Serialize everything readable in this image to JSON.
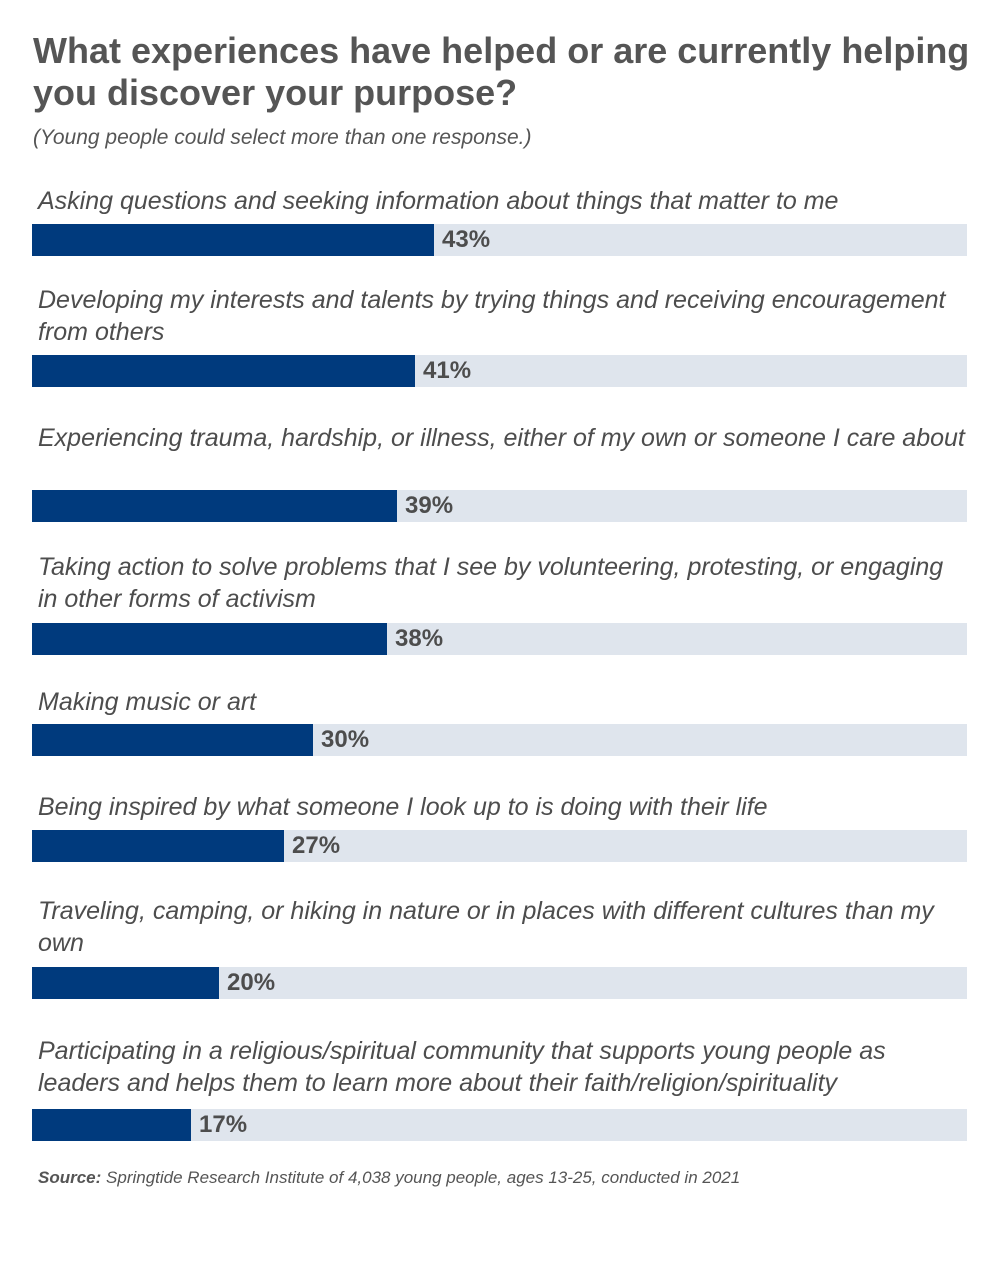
{
  "chart_data": {
    "type": "bar",
    "orientation": "horizontal",
    "title": "What experiences have helped or are currently helping you discover your purpose?",
    "subtitle": "(Young people could select more than one response.)",
    "xlim": [
      0,
      100
    ],
    "grid": false,
    "categories": [
      "Asking questions and seeking information about things that matter to me",
      "Developing my interests and talents by trying things and receiving encouragement from others",
      "Experiencing trauma, hardship, or illness, either of my own or someone I care about",
      "Taking action to solve problems that I see by volunteering, protesting, or engaging in other forms of activism",
      "Making music or art",
      "Being inspired by what someone I look up to is doing with their life",
      "Traveling, camping, or hiking in nature or in places with different cultures than my own",
      "Participating in a religious/spiritual community that supports young people as leaders and helps them to learn more about their faith/religion/spirituality"
    ],
    "values": [
      43,
      41,
      39,
      38,
      30,
      27,
      20,
      17
    ],
    "value_labels": [
      "43%",
      "41%",
      "39%",
      "38%",
      "30%",
      "27%",
      "20%",
      "17%"
    ],
    "colors": {
      "bar": "#003a7d",
      "track": "#dfe5ed"
    }
  },
  "source": {
    "label": "Source:",
    "text": "Springtide Research Institute of 4,038 young people, ages 13-25, conducted in 2021"
  }
}
